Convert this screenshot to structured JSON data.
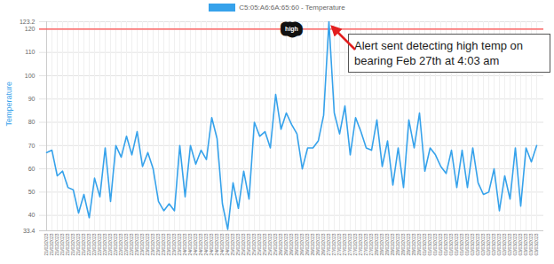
{
  "chart_data": {
    "type": "line",
    "legend": "top",
    "grid": true,
    "y_label": "Temperature",
    "annotation": "Alert sent detecting high temp on bearing Feb 27th at 4:03 am",
    "threshold": {
      "value": 120,
      "label": "high",
      "color": "#ff4d4d"
    },
    "ylim": [
      33.4,
      123.2
    ],
    "yticks": [
      33.4,
      40,
      50,
      60,
      70,
      80,
      90,
      100,
      110,
      120,
      123.2
    ],
    "categories": [
      "21/02/2023",
      "21/02/2023",
      "21/02/2023",
      "21/02/2023",
      "21/02/2023",
      "21/02/2023",
      "21/02/2023",
      "21/02/2023",
      "22/02/2023",
      "22/02/2023",
      "22/02/2023",
      "22/02/2023",
      "22/02/2023",
      "22/02/2023",
      "22/02/2023",
      "22/02/2023",
      "22/02/2023",
      "23/02/2023",
      "23/02/2023",
      "23/02/2023",
      "23/02/2023",
      "23/02/2023",
      "23/02/2023",
      "23/02/2023",
      "23/02/2023",
      "23/02/2023",
      "24/02/2023",
      "24/02/2023",
      "24/02/2023",
      "24/02/2023",
      "24/02/2023",
      "24/02/2023",
      "24/02/2023",
      "24/02/2023",
      "24/02/2023",
      "25/02/2023",
      "25/02/2023",
      "25/02/2023",
      "25/02/2023",
      "25/02/2023",
      "25/02/2023",
      "25/02/2023",
      "25/02/2023",
      "25/02/2023",
      "26/02/2023",
      "26/02/2023",
      "26/02/2023",
      "26/02/2023",
      "26/02/2023",
      "26/02/2023",
      "26/02/2023",
      "26/02/2023",
      "26/02/2023",
      "27/02/2023",
      "27/02/2023",
      "27/02/2023",
      "27/02/2023",
      "27/02/2023",
      "27/02/2023",
      "27/02/2023",
      "27/02/2023",
      "27/02/2023",
      "28/02/2023",
      "28/02/2023",
      "28/02/2023",
      "28/02/2023",
      "28/02/2023",
      "28/02/2023",
      "28/02/2023",
      "28/02/2023",
      "28/02/2023",
      "01/03/2023",
      "01/03/2023",
      "01/03/2023",
      "01/03/2023",
      "01/03/2023",
      "01/03/2023",
      "01/03/2023",
      "01/03/2023",
      "01/03/2023",
      "02/03/2023",
      "02/03/2023",
      "02/03/2023",
      "02/03/2023",
      "02/03/2023",
      "02/03/2023",
      "02/03/2023",
      "02/03/2023",
      "02/03/2023",
      "03/03/2023",
      "03/03/2023",
      "03/03/2023",
      "03/03/2023"
    ],
    "series": [
      {
        "name": "C5:05:A6:6A:65:60 - Temperature",
        "color": "#36a2eb",
        "values": [
          67,
          68,
          57,
          59,
          52,
          51,
          41,
          49,
          39,
          56,
          48,
          69,
          46,
          70,
          65,
          74,
          66,
          76,
          61,
          67,
          60,
          46,
          42,
          45,
          42,
          70,
          48,
          70,
          62,
          68,
          64,
          82,
          73,
          45,
          34,
          54,
          43,
          59,
          47,
          80,
          74,
          76,
          69,
          92,
          77,
          84,
          79,
          75,
          60,
          69,
          69,
          72,
          83,
          123.2,
          84,
          75,
          87,
          66,
          82,
          76,
          69,
          68,
          81,
          61,
          72,
          53,
          69,
          52,
          81,
          69,
          84,
          59,
          69,
          66,
          61,
          58,
          68,
          52,
          68,
          52,
          69,
          54,
          49,
          50,
          60,
          42,
          57,
          47,
          69,
          44,
          69,
          63,
          70
        ]
      }
    ]
  }
}
